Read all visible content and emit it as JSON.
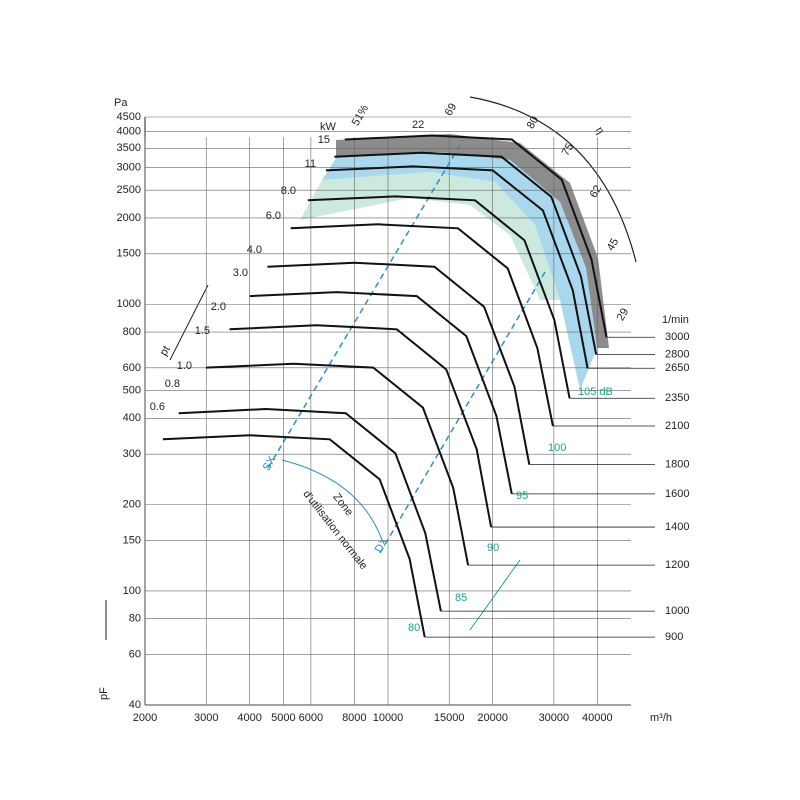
{
  "chart_data": {
    "type": "fan-curve",
    "y_label": "Pa",
    "y_label_bottom": "pF",
    "x_label": "m³/h",
    "speed_label": "1/min",
    "pressure_arrow_label": "pt",
    "xscale": "log",
    "yscale": "log",
    "xlim": [
      2000,
      50000
    ],
    "ylim": [
      40,
      4500
    ],
    "xticks": [
      2000,
      3000,
      4000,
      5000,
      6000,
      8000,
      10000,
      15000,
      20000,
      30000,
      40000
    ],
    "yticks": [
      40,
      60,
      80,
      100,
      150,
      200,
      300,
      400,
      500,
      600,
      800,
      1000,
      1500,
      2000,
      2500,
      3000,
      3500,
      4000,
      4500
    ],
    "grid": true,
    "series": [
      {
        "name": "900",
        "color": "#111111",
        "x": [
          2252,
          4006,
          6802,
          9468,
          11546,
          12750
        ],
        "values": [
          338,
          349,
          338,
          245,
          129,
          69
        ]
      },
      {
        "name": "1000",
        "color": "#111111",
        "x": [
          2500,
          4450,
          7560,
          10500,
          12800,
          14200
        ],
        "values": [
          417,
          431,
          417,
          302,
          159,
          85
        ]
      },
      {
        "name": "1200",
        "color": "#111111",
        "x": [
          3000,
          5340,
          9070,
          12600,
          15400,
          17000
        ],
        "values": [
          601,
          620,
          601,
          436,
          229,
          123
        ]
      },
      {
        "name": "1400",
        "color": "#111111",
        "x": [
          3500,
          6230,
          10600,
          14700,
          18000,
          19800
        ],
        "values": [
          818,
          845,
          818,
          593,
          312,
          167
        ]
      },
      {
        "name": "1600",
        "color": "#111111",
        "x": [
          4000,
          7120,
          12100,
          16800,
          20500,
          22700
        ],
        "values": [
          1068,
          1103,
          1068,
          774,
          408,
          218
        ]
      },
      {
        "name": "1800",
        "color": "#111111",
        "x": [
          4500,
          8010,
          13600,
          18900,
          23100,
          25500
        ],
        "values": [
          1352,
          1396,
          1352,
          980,
          516,
          276
        ]
      },
      {
        "name": "2100",
        "color": "#111111",
        "x": [
          5250,
          9350,
          15900,
          22100,
          26900,
          29800
        ],
        "values": [
          1840,
          1900,
          1840,
          1334,
          702,
          376
        ]
      },
      {
        "name": "2350",
        "color": "#111111",
        "x": [
          5880,
          10500,
          17800,
          24700,
          30100,
          33300
        ],
        "values": [
          2304,
          2379,
          2304,
          1670,
          880,
          470
        ]
      },
      {
        "name": "2650",
        "color": "#111111",
        "x": [
          6630,
          11800,
          20000,
          27900,
          34000,
          37500
        ],
        "values": [
          2930,
          3026,
          2930,
          2124,
          1118,
          598
        ]
      },
      {
        "name": "2800",
        "color": "#111111",
        "x": [
          7010,
          12500,
          21200,
          29500,
          35900,
          39700
        ],
        "values": [
          3272,
          3378,
          3272,
          2371,
          1249,
          668
        ]
      },
      {
        "name": "3000",
        "color": "#111111",
        "x": [
          7510,
          13400,
          22700,
          31600,
          38500,
          42500
        ],
        "values": [
          3756,
          3878,
          3756,
          2722,
          1433,
          767
        ]
      }
    ],
    "power_unit": "kW",
    "power_labels": [
      "0.6",
      "0.8",
      "1.0",
      "1.5",
      "2.0",
      "3.0",
      "4.0",
      "6.0",
      "8.0",
      "11",
      "15"
    ],
    "efficiency_symbol": "η",
    "efficiency_labels": [
      "51%",
      "22",
      "69",
      "80",
      "75",
      "62",
      "45",
      "29"
    ],
    "noise_labels": [
      "80",
      "85",
      "90",
      "95",
      "100",
      "105 dB"
    ],
    "zone_label": [
      "Zone",
      "d'utilisation normale"
    ],
    "sx_label": "SX",
    "dx_label": "DX"
  }
}
